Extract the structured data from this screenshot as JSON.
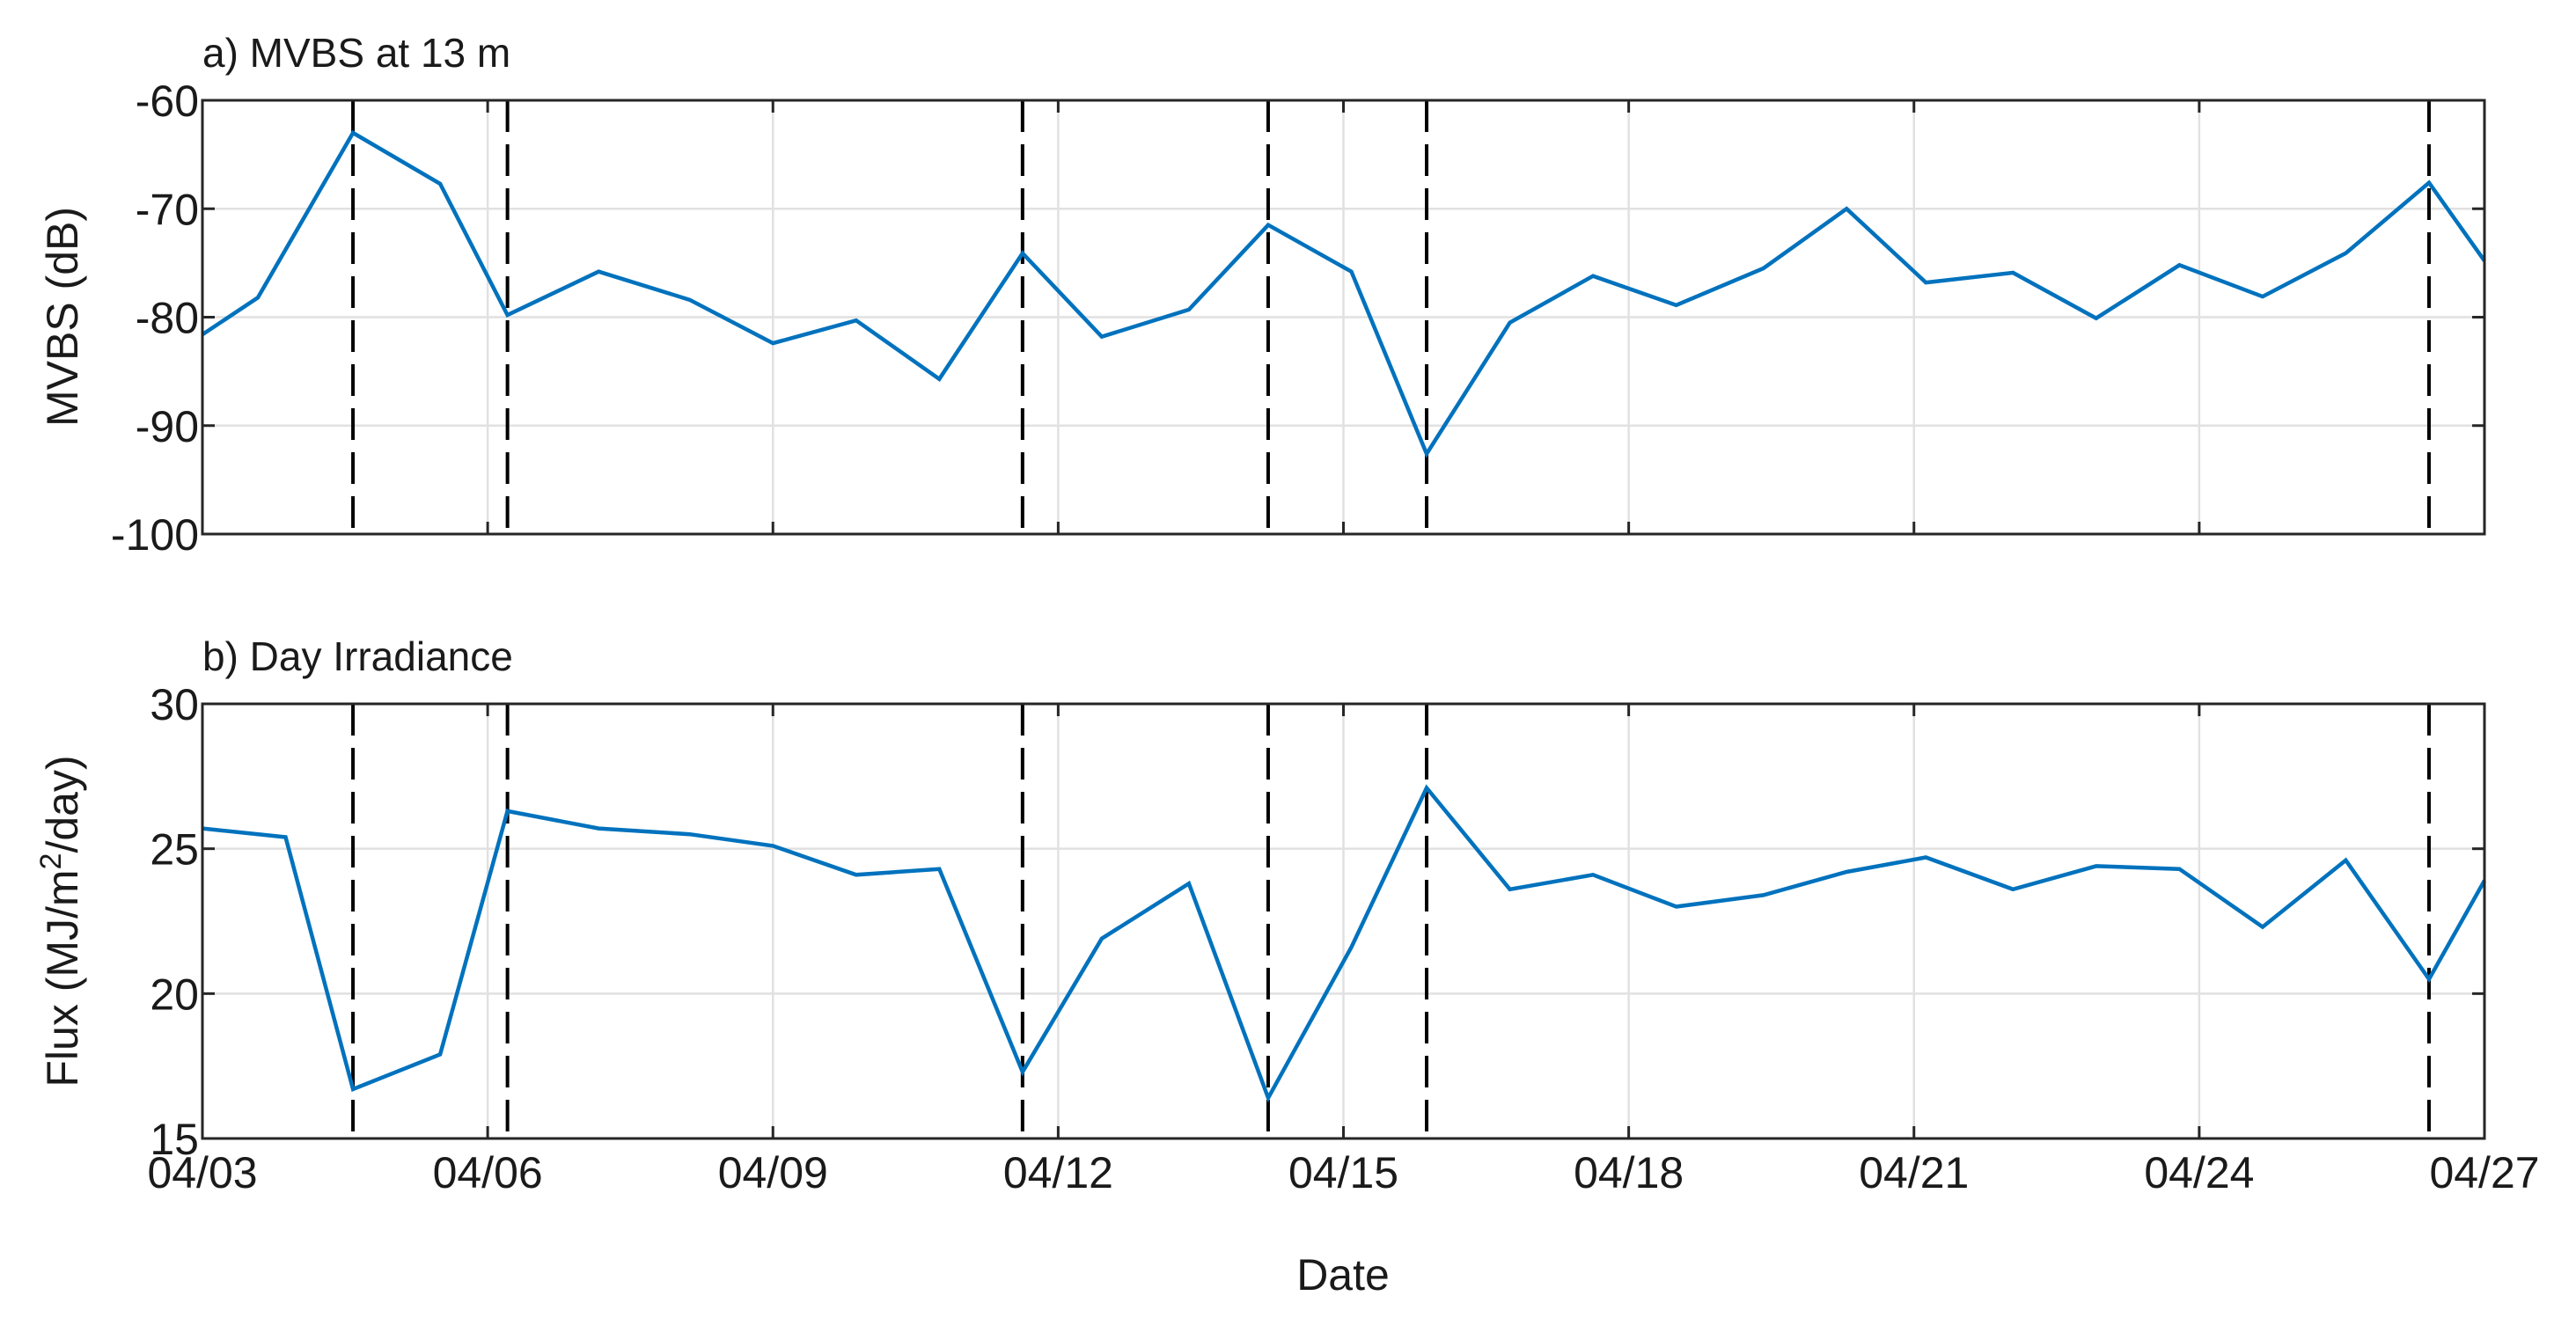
{
  "chart_data": [
    {
      "type": "line",
      "title": "a) MVBS at 13 m",
      "xlabel": "",
      "ylabel": "MVBS (dB)",
      "xlim": [
        "04/03",
        "04/27"
      ],
      "ylim": [
        -100,
        -60
      ],
      "grid": true,
      "x_ticks": [
        "04/03",
        "04/06",
        "04/09",
        "04/12",
        "04/15",
        "04/18",
        "04/21",
        "04/24",
        "04/27"
      ],
      "y_ticks": [
        "-100",
        "-90",
        "-80",
        "-70",
        "-60"
      ],
      "x_tick_labels_visible": false,
      "series": [
        {
          "color": "#0072bd",
          "x": [
            "04/03",
            "04/03 14:00",
            "04/04 14:00",
            "04/05 12:00",
            "04/06 05:00",
            "04/07 04:00",
            "04/08 03:00",
            "04/09 00:00",
            "04/09 21:00",
            "04/10 18:00",
            "04/11 15:00",
            "04/12 11:00",
            "04/13 09:00",
            "04/14 05:00",
            "04/15 02:00",
            "04/15 21:00",
            "04/16 18:00",
            "04/17 15:00",
            "04/18 12:00",
            "04/19 10:00",
            "04/20 07:00",
            "04/21 03:00",
            "04/22 01:00",
            "04/22 22:00",
            "04/23 19:00",
            "04/24 16:00",
            "04/25 13:00",
            "04/26 10:00",
            "04/27"
          ],
          "values": [
            -81.6,
            -78.2,
            -63,
            -67.7,
            -79.8,
            -75.8,
            -78.4,
            -82.4,
            -80.3,
            -85.7,
            -74.1,
            -81.8,
            -79.3,
            -71.5,
            -75.8,
            -92.6,
            -80.5,
            -76.2,
            -78.9,
            -75.5,
            -70,
            -76.8,
            -75.9,
            -80.1,
            -75.2,
            -78.1,
            -74.1,
            -67.6,
            -74.8
          ]
        }
      ],
      "event_lines": [
        "04/04 14:00",
        "04/06 05:00",
        "04/11 15:00",
        "04/14 05:00",
        "04/15 21:00",
        "04/26 10:00"
      ]
    },
    {
      "type": "line",
      "title": "b) Day Irradiance",
      "xlabel": "Date",
      "ylabel": "Flux (MJ/m²/day)",
      "xlim": [
        "04/03",
        "04/27"
      ],
      "ylim": [
        15,
        30
      ],
      "grid": true,
      "x_ticks": [
        "04/03",
        "04/06",
        "04/09",
        "04/12",
        "04/15",
        "04/18",
        "04/21",
        "04/24",
        "04/27"
      ],
      "y_ticks": [
        "15",
        "20",
        "25",
        "30"
      ],
      "series": [
        {
          "color": "#0072bd",
          "x": [
            "04/03",
            "04/03 21:00",
            "04/04 14:00",
            "04/05 12:00",
            "04/06 05:00",
            "04/07 04:00",
            "04/08 03:00",
            "04/09 00:00",
            "04/09 21:00",
            "04/10 18:00",
            "04/11 15:00",
            "04/12 11:00",
            "04/13 09:00",
            "04/14 05:00",
            "04/15 02:00",
            "04/15 21:00",
            "04/16 18:00",
            "04/17 15:00",
            "04/18 12:00",
            "04/19 10:00",
            "04/20 07:00",
            "04/21 03:00",
            "04/22 01:00",
            "04/22 22:00",
            "04/23 19:00",
            "04/24 16:00",
            "04/25 13:00",
            "04/26 10:00",
            "04/27"
          ],
          "values": [
            25.7,
            25.4,
            16.7,
            17.9,
            26.3,
            25.7,
            25.5,
            25.1,
            24.1,
            24.3,
            17.3,
            21.9,
            23.8,
            16.4,
            21.6,
            27.1,
            23.6,
            24.1,
            23,
            23.4,
            24.2,
            24.7,
            23.6,
            24.4,
            24.3,
            22.3,
            24.6,
            20.5,
            23.9
          ]
        }
      ],
      "event_lines": [
        "04/04 14:00",
        "04/06 05:00",
        "04/11 15:00",
        "04/14 05:00",
        "04/15 21:00",
        "04/26 10:00"
      ]
    }
  ]
}
